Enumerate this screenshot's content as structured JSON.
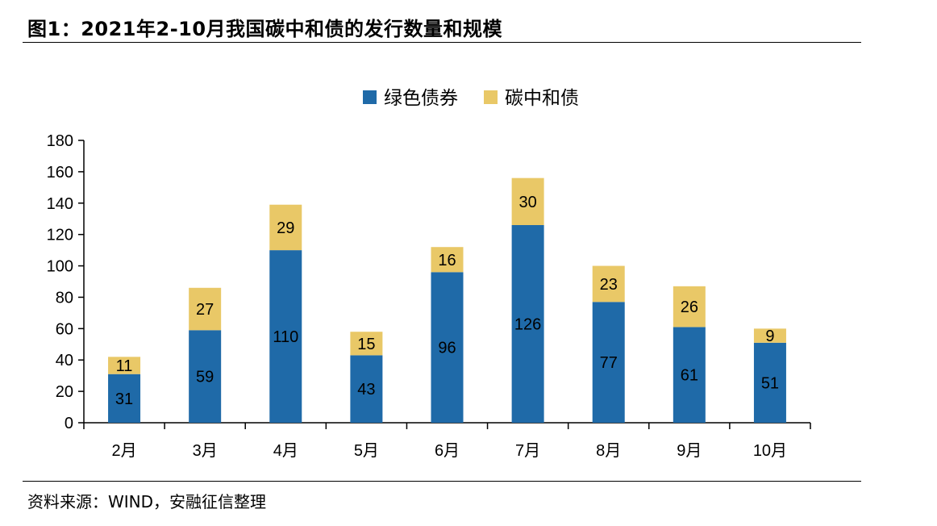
{
  "figure": {
    "title": "图1：2021年2-10月我国碳中和债的发行数量和规模",
    "source": "资料来源：WIND，安融征信整理"
  },
  "chart_data": {
    "type": "bar",
    "stacked": true,
    "categories": [
      "2月",
      "3月",
      "4月",
      "5月",
      "6月",
      "7月",
      "8月",
      "9月",
      "10月"
    ],
    "series": [
      {
        "name": "绿色债券",
        "values": [
          31,
          59,
          110,
          43,
          96,
          126,
          77,
          61,
          51
        ],
        "color": "#1f6aa8"
      },
      {
        "name": "碳中和债",
        "values": [
          11,
          27,
          29,
          15,
          16,
          30,
          23,
          26,
          9
        ],
        "color": "#e9c867"
      }
    ],
    "ylim": [
      0,
      180
    ],
    "yticks": [
      0,
      20,
      40,
      60,
      80,
      100,
      120,
      140,
      160,
      180
    ],
    "grid": false,
    "legend": "top-center",
    "data_labels": true
  }
}
